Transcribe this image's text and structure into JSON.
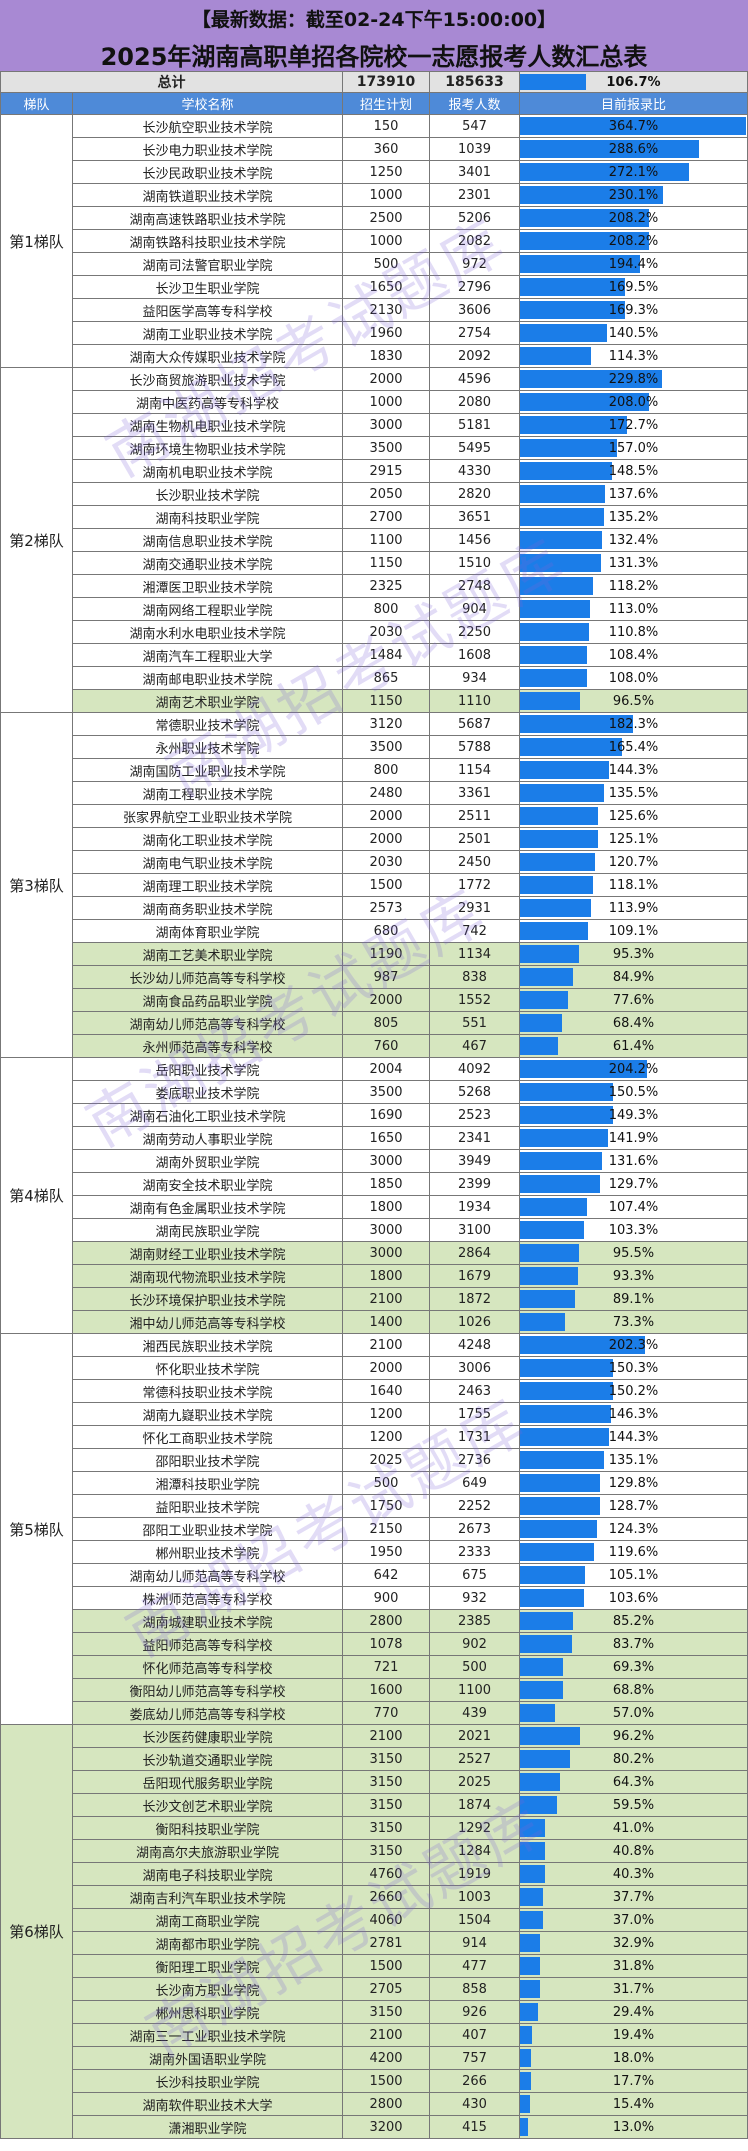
{
  "header": {
    "line1": "【最新数据：截至02-24下午15:00:00】",
    "title": "2025年湖南高职单招各院校一志愿报考人数汇总表"
  },
  "total": {
    "label": "总计",
    "plan": "173910",
    "applicants": "185633",
    "ratio": "106.7%",
    "ratio_value": 106.7
  },
  "columns": {
    "tier": "梯队",
    "school": "学校名称",
    "plan": "招生计划",
    "applicants": "报考人数",
    "ratio": "目前报录比"
  },
  "bar_scale_max": 364.7,
  "watermark": "南湖招考试题库",
  "colors": {
    "header_purple": "#a889d3",
    "column_header_blue": "#4e8ad8",
    "bar_blue": "#1b7de8",
    "low_ratio_green": "#d6e6bf",
    "total_grey": "#e2e2e2"
  },
  "tiers": [
    {
      "name": "第1梯队",
      "rows": [
        {
          "school": "长沙航空职业技术学院",
          "plan": "150",
          "applicants": "547",
          "ratio": "364.7%"
        },
        {
          "school": "长沙电力职业技术学院",
          "plan": "360",
          "applicants": "1039",
          "ratio": "288.6%"
        },
        {
          "school": "长沙民政职业技术学院",
          "plan": "1250",
          "applicants": "3401",
          "ratio": "272.1%"
        },
        {
          "school": "湖南铁道职业技术学院",
          "plan": "1000",
          "applicants": "2301",
          "ratio": "230.1%"
        },
        {
          "school": "湖南高速铁路职业技术学院",
          "plan": "2500",
          "applicants": "5206",
          "ratio": "208.2%"
        },
        {
          "school": "湖南铁路科技职业技术学院",
          "plan": "1000",
          "applicants": "2082",
          "ratio": "208.2%"
        },
        {
          "school": "湖南司法警官职业学院",
          "plan": "500",
          "applicants": "972",
          "ratio": "194.4%"
        },
        {
          "school": "长沙卫生职业学院",
          "plan": "1650",
          "applicants": "2796",
          "ratio": "169.5%"
        },
        {
          "school": "益阳医学高等专科学校",
          "plan": "2130",
          "applicants": "3606",
          "ratio": "169.3%"
        },
        {
          "school": "湖南工业职业技术学院",
          "plan": "1960",
          "applicants": "2754",
          "ratio": "140.5%"
        },
        {
          "school": "湖南大众传媒职业技术学院",
          "plan": "1830",
          "applicants": "2092",
          "ratio": "114.3%"
        }
      ]
    },
    {
      "name": "第2梯队",
      "rows": [
        {
          "school": "长沙商贸旅游职业技术学院",
          "plan": "2000",
          "applicants": "4596",
          "ratio": "229.8%"
        },
        {
          "school": "湖南中医药高等专科学校",
          "plan": "1000",
          "applicants": "2080",
          "ratio": "208.0%"
        },
        {
          "school": "湖南生物机电职业技术学院",
          "plan": "3000",
          "applicants": "5181",
          "ratio": "172.7%"
        },
        {
          "school": "湖南环境生物职业技术学院",
          "plan": "3500",
          "applicants": "5495",
          "ratio": "157.0%"
        },
        {
          "school": "湖南机电职业技术学院",
          "plan": "2915",
          "applicants": "4330",
          "ratio": "148.5%"
        },
        {
          "school": "长沙职业技术学院",
          "plan": "2050",
          "applicants": "2820",
          "ratio": "137.6%"
        },
        {
          "school": "湖南科技职业学院",
          "plan": "2700",
          "applicants": "3651",
          "ratio": "135.2%"
        },
        {
          "school": "湖南信息职业技术学院",
          "plan": "1100",
          "applicants": "1456",
          "ratio": "132.4%"
        },
        {
          "school": "湖南交通职业技术学院",
          "plan": "1150",
          "applicants": "1510",
          "ratio": "131.3%"
        },
        {
          "school": "湘潭医卫职业技术学院",
          "plan": "2325",
          "applicants": "2748",
          "ratio": "118.2%"
        },
        {
          "school": "湖南网络工程职业学院",
          "plan": "800",
          "applicants": "904",
          "ratio": "113.0%"
        },
        {
          "school": "湖南水利水电职业技术学院",
          "plan": "2030",
          "applicants": "2250",
          "ratio": "110.8%"
        },
        {
          "school": "湖南汽车工程职业大学",
          "plan": "1484",
          "applicants": "1608",
          "ratio": "108.4%"
        },
        {
          "school": "湖南邮电职业技术学院",
          "plan": "865",
          "applicants": "934",
          "ratio": "108.0%"
        },
        {
          "school": "湖南艺术职业学院",
          "plan": "1150",
          "applicants": "1110",
          "ratio": "96.5%"
        }
      ]
    },
    {
      "name": "第3梯队",
      "rows": [
        {
          "school": "常德职业技术学院",
          "plan": "3120",
          "applicants": "5687",
          "ratio": "182.3%"
        },
        {
          "school": "永州职业技术学院",
          "plan": "3500",
          "applicants": "5788",
          "ratio": "165.4%"
        },
        {
          "school": "湖南国防工业职业技术学院",
          "plan": "800",
          "applicants": "1154",
          "ratio": "144.3%"
        },
        {
          "school": "湖南工程职业技术学院",
          "plan": "2480",
          "applicants": "3361",
          "ratio": "135.5%"
        },
        {
          "school": "张家界航空工业职业技术学院",
          "plan": "2000",
          "applicants": "2511",
          "ratio": "125.6%"
        },
        {
          "school": "湖南化工职业技术学院",
          "plan": "2000",
          "applicants": "2501",
          "ratio": "125.1%"
        },
        {
          "school": "湖南电气职业技术学院",
          "plan": "2030",
          "applicants": "2450",
          "ratio": "120.7%"
        },
        {
          "school": "湖南理工职业技术学院",
          "plan": "1500",
          "applicants": "1772",
          "ratio": "118.1%"
        },
        {
          "school": "湖南商务职业技术学院",
          "plan": "2573",
          "applicants": "2931",
          "ratio": "113.9%"
        },
        {
          "school": "湖南体育职业学院",
          "plan": "680",
          "applicants": "742",
          "ratio": "109.1%"
        },
        {
          "school": "湖南工艺美术职业学院",
          "plan": "1190",
          "applicants": "1134",
          "ratio": "95.3%"
        },
        {
          "school": "长沙幼儿师范高等专科学校",
          "plan": "987",
          "applicants": "838",
          "ratio": "84.9%"
        },
        {
          "school": "湖南食品药品职业学院",
          "plan": "2000",
          "applicants": "1552",
          "ratio": "77.6%"
        },
        {
          "school": "湖南幼儿师范高等专科学校",
          "plan": "805",
          "applicants": "551",
          "ratio": "68.4%"
        },
        {
          "school": "永州师范高等专科学校",
          "plan": "760",
          "applicants": "467",
          "ratio": "61.4%"
        }
      ]
    },
    {
      "name": "第4梯队",
      "rows": [
        {
          "school": "岳阳职业技术学院",
          "plan": "2004",
          "applicants": "4092",
          "ratio": "204.2%"
        },
        {
          "school": "娄底职业技术学院",
          "plan": "3500",
          "applicants": "5268",
          "ratio": "150.5%"
        },
        {
          "school": "湖南石油化工职业技术学院",
          "plan": "1690",
          "applicants": "2523",
          "ratio": "149.3%"
        },
        {
          "school": "湖南劳动人事职业学院",
          "plan": "1650",
          "applicants": "2341",
          "ratio": "141.9%"
        },
        {
          "school": "湖南外贸职业学院",
          "plan": "3000",
          "applicants": "3949",
          "ratio": "131.6%"
        },
        {
          "school": "湖南安全技术职业学院",
          "plan": "1850",
          "applicants": "2399",
          "ratio": "129.7%"
        },
        {
          "school": "湖南有色金属职业技术学院",
          "plan": "1800",
          "applicants": "1934",
          "ratio": "107.4%"
        },
        {
          "school": "湖南民族职业学院",
          "plan": "3000",
          "applicants": "3100",
          "ratio": "103.3%"
        },
        {
          "school": "湖南财经工业职业技术学院",
          "plan": "3000",
          "applicants": "2864",
          "ratio": "95.5%"
        },
        {
          "school": "湖南现代物流职业技术学院",
          "plan": "1800",
          "applicants": "1679",
          "ratio": "93.3%"
        },
        {
          "school": "长沙环境保护职业技术学院",
          "plan": "2100",
          "applicants": "1872",
          "ratio": "89.1%"
        },
        {
          "school": "湘中幼儿师范高等专科学校",
          "plan": "1400",
          "applicants": "1026",
          "ratio": "73.3%"
        }
      ]
    },
    {
      "name": "第5梯队",
      "rows": [
        {
          "school": "湘西民族职业技术学院",
          "plan": "2100",
          "applicants": "4248",
          "ratio": "202.3%"
        },
        {
          "school": "怀化职业技术学院",
          "plan": "2000",
          "applicants": "3006",
          "ratio": "150.3%"
        },
        {
          "school": "常德科技职业技术学院",
          "plan": "1640",
          "applicants": "2463",
          "ratio": "150.2%"
        },
        {
          "school": "湖南九嶷职业技术学院",
          "plan": "1200",
          "applicants": "1755",
          "ratio": "146.3%"
        },
        {
          "school": "怀化工商职业技术学院",
          "plan": "1200",
          "applicants": "1731",
          "ratio": "144.3%"
        },
        {
          "school": "邵阳职业技术学院",
          "plan": "2025",
          "applicants": "2736",
          "ratio": "135.1%"
        },
        {
          "school": "湘潭科技职业学院",
          "plan": "500",
          "applicants": "649",
          "ratio": "129.8%"
        },
        {
          "school": "益阳职业技术学院",
          "plan": "1750",
          "applicants": "2252",
          "ratio": "128.7%"
        },
        {
          "school": "邵阳工业职业技术学院",
          "plan": "2150",
          "applicants": "2673",
          "ratio": "124.3%"
        },
        {
          "school": "郴州职业技术学院",
          "plan": "1950",
          "applicants": "2333",
          "ratio": "119.6%"
        },
        {
          "school": "湖南幼儿师范高等专科学校",
          "plan": "642",
          "applicants": "675",
          "ratio": "105.1%"
        },
        {
          "school": "株洲师范高等专科学校",
          "plan": "900",
          "applicants": "932",
          "ratio": "103.6%"
        },
        {
          "school": "湖南城建职业技术学院",
          "plan": "2800",
          "applicants": "2385",
          "ratio": "85.2%"
        },
        {
          "school": "益阳师范高等专科学校",
          "plan": "1078",
          "applicants": "902",
          "ratio": "83.7%"
        },
        {
          "school": "怀化师范高等专科学校",
          "plan": "721",
          "applicants": "500",
          "ratio": "69.3%"
        },
        {
          "school": "衡阳幼儿师范高等专科学校",
          "plan": "1600",
          "applicants": "1100",
          "ratio": "68.8%"
        },
        {
          "school": "娄底幼儿师范高等专科学校",
          "plan": "770",
          "applicants": "439",
          "ratio": "57.0%"
        }
      ]
    },
    {
      "name": "第6梯队",
      "rows": [
        {
          "school": "长沙医药健康职业学院",
          "plan": "2100",
          "applicants": "2021",
          "ratio": "96.2%"
        },
        {
          "school": "长沙轨道交通职业学院",
          "plan": "3150",
          "applicants": "2527",
          "ratio": "80.2%"
        },
        {
          "school": "岳阳现代服务职业学院",
          "plan": "3150",
          "applicants": "2025",
          "ratio": "64.3%"
        },
        {
          "school": "长沙文创艺术职业学院",
          "plan": "3150",
          "applicants": "1874",
          "ratio": "59.5%"
        },
        {
          "school": "衡阳科技职业学院",
          "plan": "3150",
          "applicants": "1292",
          "ratio": "41.0%"
        },
        {
          "school": "湖南高尔夫旅游职业学院",
          "plan": "3150",
          "applicants": "1284",
          "ratio": "40.8%"
        },
        {
          "school": "湖南电子科技职业学院",
          "plan": "4760",
          "applicants": "1919",
          "ratio": "40.3%"
        },
        {
          "school": "湖南吉利汽车职业技术学院",
          "plan": "2660",
          "applicants": "1003",
          "ratio": "37.7%"
        },
        {
          "school": "湖南工商职业学院",
          "plan": "4060",
          "applicants": "1504",
          "ratio": "37.0%"
        },
        {
          "school": "湖南都市职业学院",
          "plan": "2781",
          "applicants": "914",
          "ratio": "32.9%"
        },
        {
          "school": "衡阳理工职业学院",
          "plan": "1500",
          "applicants": "477",
          "ratio": "31.8%"
        },
        {
          "school": "长沙南方职业学院",
          "plan": "2705",
          "applicants": "858",
          "ratio": "31.7%"
        },
        {
          "school": "郴州思科职业学院",
          "plan": "3150",
          "applicants": "926",
          "ratio": "29.4%"
        },
        {
          "school": "湖南三一工业职业技术学院",
          "plan": "2100",
          "applicants": "407",
          "ratio": "19.4%"
        },
        {
          "school": "湖南外国语职业学院",
          "plan": "4200",
          "applicants": "757",
          "ratio": "18.0%"
        },
        {
          "school": "长沙科技职业学院",
          "plan": "1500",
          "applicants": "266",
          "ratio": "17.7%"
        },
        {
          "school": "湖南软件职业技术大学",
          "plan": "2800",
          "applicants": "430",
          "ratio": "15.4%"
        },
        {
          "school": "潇湘职业学院",
          "plan": "3200",
          "applicants": "415",
          "ratio": "13.0%"
        }
      ]
    }
  ]
}
